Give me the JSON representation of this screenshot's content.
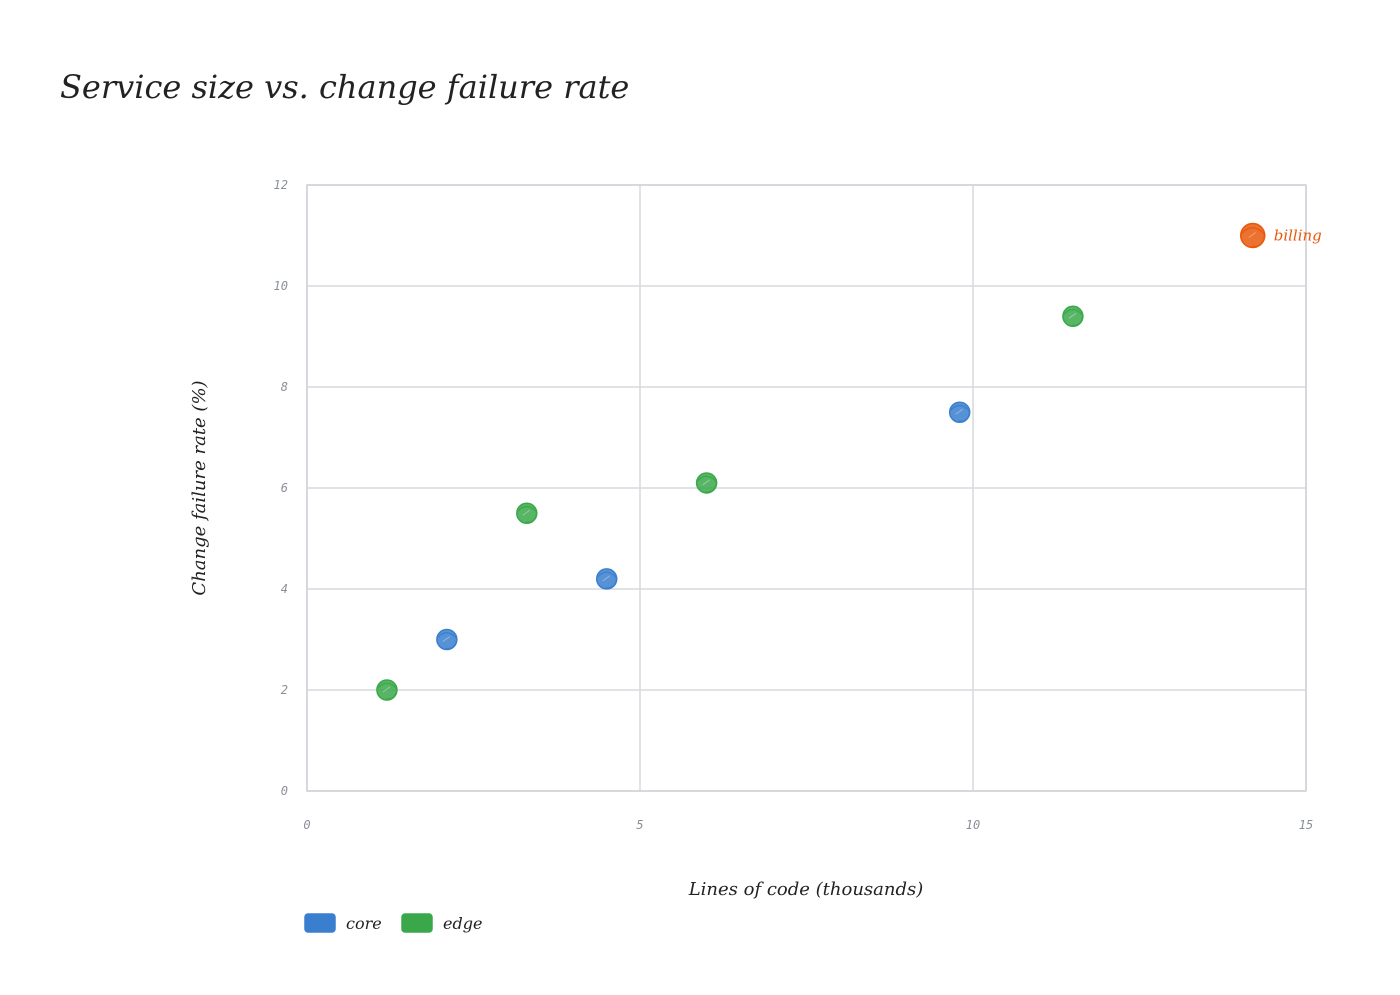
{
  "chart_data": {
    "type": "scatter",
    "title": "Service size vs. change failure rate",
    "xlabel": "Lines of code (thousands)",
    "ylabel": "Change failure rate (%)",
    "xlim": [
      0,
      15
    ],
    "ylim": [
      0,
      12
    ],
    "xticks": [
      0,
      5,
      10,
      15
    ],
    "yticks": [
      0,
      2,
      4,
      6,
      8,
      10,
      12
    ],
    "grid": true,
    "legend_position": "bottom-left",
    "series": [
      {
        "name": "core",
        "color": "#3a7fcf",
        "points": [
          {
            "x": 2.1,
            "y": 3.0
          },
          {
            "x": 4.5,
            "y": 4.2
          },
          {
            "x": 9.8,
            "y": 7.5
          }
        ]
      },
      {
        "name": "edge",
        "color": "#3aa84a",
        "points": [
          {
            "x": 1.2,
            "y": 2.0
          },
          {
            "x": 3.3,
            "y": 5.5
          },
          {
            "x": 6.0,
            "y": 6.1
          },
          {
            "x": 11.5,
            "y": 9.4
          }
        ]
      }
    ],
    "highlight": {
      "label": "billing",
      "color": "#e8590c",
      "x": 14.2,
      "y": 11.0
    }
  }
}
